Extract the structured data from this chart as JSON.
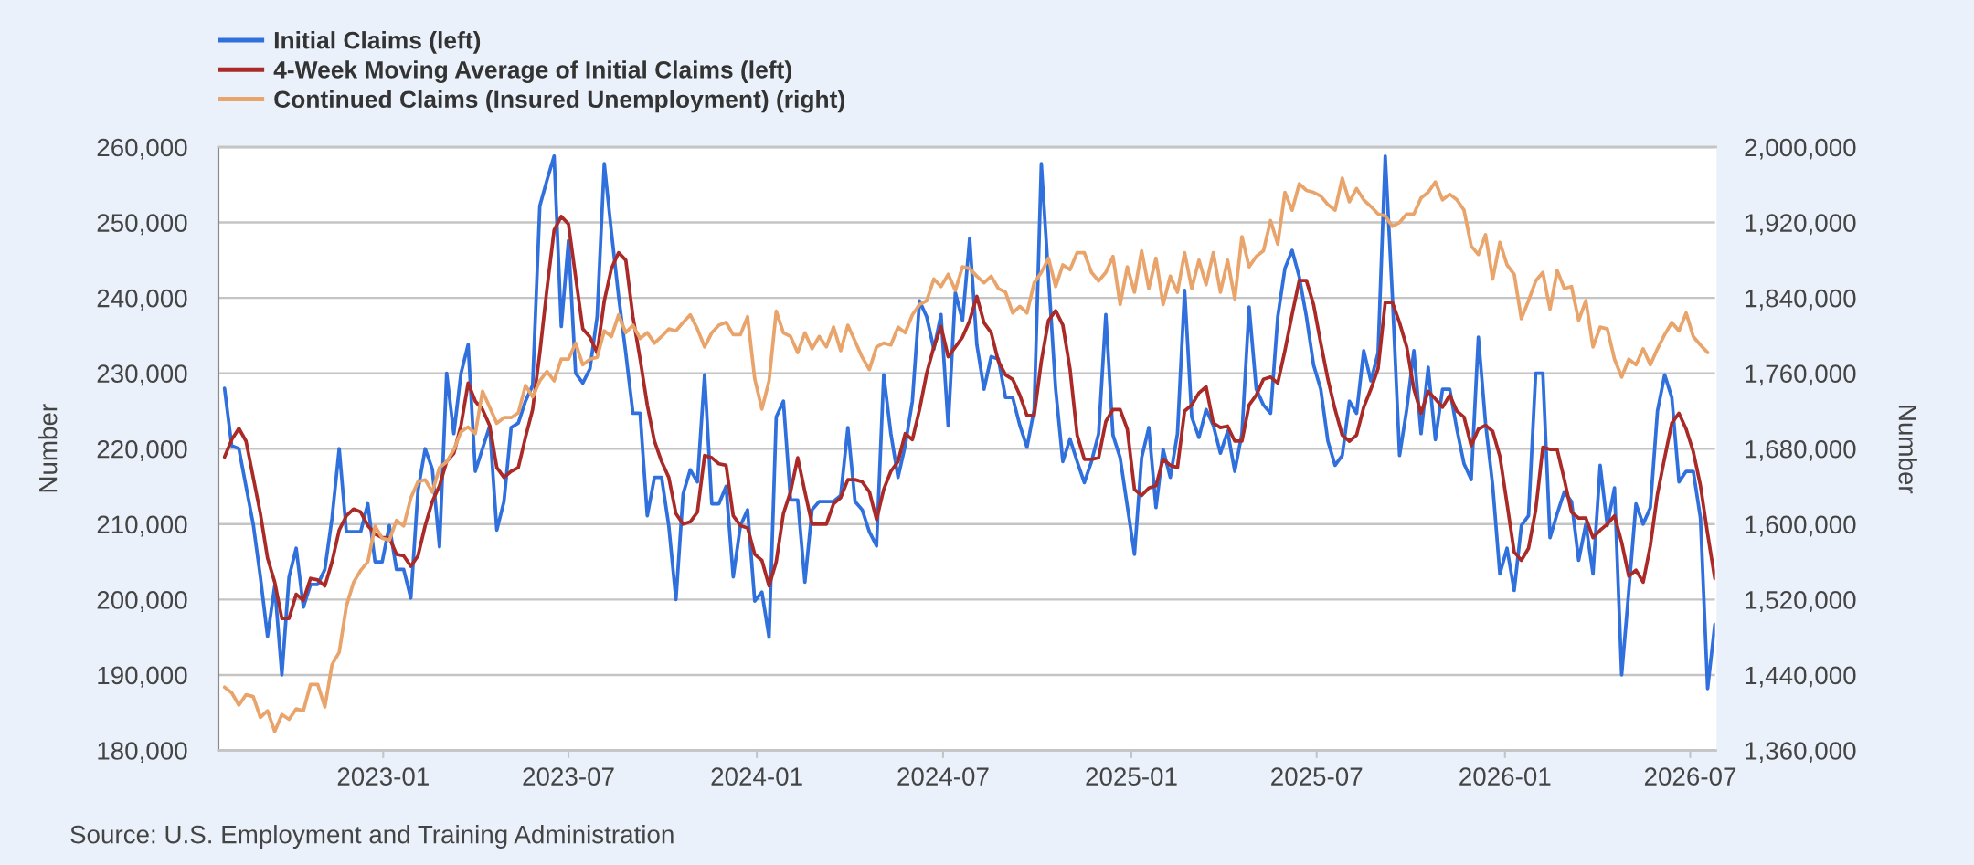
{
  "chart_data": {
    "type": "line",
    "x": [
      "2022-07-30",
      "2022-08-06",
      "2022-08-13",
      "2022-08-20",
      "2022-08-27",
      "2022-09-03",
      "2022-09-10",
      "2022-09-17",
      "2022-09-24",
      "2022-10-01",
      "2022-10-08",
      "2022-10-15",
      "2022-10-22",
      "2022-10-29",
      "2022-11-05",
      "2022-11-12",
      "2022-11-19",
      "2022-11-26",
      "2022-12-03",
      "2022-12-10",
      "2022-12-17",
      "2022-12-24",
      "2022-12-31",
      "2023-01-07",
      "2023-01-14",
      "2023-01-21",
      "2023-01-28",
      "2023-02-04",
      "2023-02-11",
      "2023-02-18",
      "2023-02-25",
      "2023-03-04",
      "2023-03-11",
      "2023-03-18",
      "2023-03-25",
      "2023-04-01",
      "2023-04-08",
      "2023-04-15",
      "2023-04-22",
      "2023-04-29",
      "2023-05-06",
      "2023-05-13",
      "2023-05-20",
      "2023-05-27",
      "2023-06-03",
      "2023-06-10",
      "2023-06-17",
      "2023-06-24",
      "2023-07-01",
      "2023-07-08",
      "2023-07-15",
      "2023-07-22",
      "2023-07-29",
      "2023-08-05",
      "2023-08-12",
      "2023-08-19",
      "2023-08-26",
      "2023-09-02",
      "2023-09-09",
      "2023-09-16",
      "2023-09-23",
      "2023-09-30",
      "2023-10-07",
      "2023-10-14",
      "2023-10-21",
      "2023-10-28",
      "2023-11-04",
      "2023-11-11",
      "2023-11-18",
      "2023-11-25",
      "2023-12-02",
      "2023-12-09",
      "2023-12-16",
      "2023-12-23",
      "2023-12-30",
      "2024-01-06",
      "2024-01-13",
      "2024-01-20",
      "2024-01-27",
      "2024-02-03",
      "2024-02-10",
      "2024-02-17",
      "2024-02-24",
      "2024-03-02",
      "2024-03-09",
      "2024-03-16",
      "2024-03-23",
      "2024-03-30",
      "2024-04-06",
      "2024-04-13",
      "2024-04-20",
      "2024-04-27",
      "2024-05-04",
      "2024-05-11",
      "2024-05-18",
      "2024-05-25",
      "2024-06-01",
      "2024-06-08",
      "2024-06-15",
      "2024-06-22",
      "2024-06-29",
      "2024-07-06",
      "2024-07-13",
      "2024-07-20",
      "2024-07-27",
      "2024-08-03",
      "2024-08-10",
      "2024-08-17",
      "2024-08-24",
      "2024-08-31",
      "2024-09-07",
      "2024-09-14",
      "2024-09-21",
      "2024-09-28",
      "2024-10-05",
      "2024-10-12",
      "2024-10-19",
      "2024-10-26",
      "2024-11-02",
      "2024-11-09",
      "2024-11-16",
      "2024-11-23",
      "2024-11-30",
      "2024-12-07",
      "2024-12-14",
      "2024-12-21",
      "2024-12-28",
      "2025-01-04",
      "2025-01-11",
      "2025-01-18",
      "2025-01-25",
      "2025-02-01",
      "2025-02-08",
      "2025-02-15",
      "2025-02-22",
      "2025-03-01",
      "2025-03-08",
      "2025-03-15",
      "2025-03-22",
      "2025-03-29",
      "2025-04-05",
      "2025-04-12",
      "2025-04-19",
      "2025-04-26",
      "2025-05-03",
      "2025-05-10",
      "2025-05-17",
      "2025-05-24",
      "2025-05-31",
      "2025-06-07",
      "2025-06-14",
      "2025-06-21",
      "2025-06-28",
      "2025-07-05",
      "2025-07-12",
      "2025-07-19",
      "2025-07-26",
      "2025-08-02",
      "2025-08-09",
      "2025-08-16",
      "2025-08-23",
      "2025-08-30",
      "2025-09-06",
      "2025-09-13",
      "2025-09-20",
      "2025-09-27",
      "2025-10-04",
      "2025-10-11",
      "2025-10-18",
      "2025-10-25",
      "2025-11-01",
      "2025-11-08",
      "2025-11-15",
      "2025-11-22",
      "2025-11-29",
      "2025-12-06",
      "2025-12-13",
      "2025-12-20",
      "2025-12-27",
      "2026-01-03",
      "2026-01-10",
      "2026-01-17",
      "2026-01-24",
      "2026-01-31",
      "2026-02-07",
      "2026-02-14",
      "2026-02-21",
      "2026-02-28",
      "2026-03-07",
      "2026-03-14",
      "2026-03-21",
      "2026-03-28",
      "2026-04-04",
      "2026-04-11",
      "2026-04-18",
      "2026-04-25",
      "2026-05-02",
      "2026-05-09",
      "2026-05-16",
      "2026-05-23",
      "2026-05-30",
      "2026-06-06",
      "2026-06-13",
      "2026-06-20",
      "2026-06-27",
      "2026-07-04",
      "2026-07-11",
      "2026-07-18",
      "2026-07-25"
    ],
    "series": [
      {
        "name": "Initial Claims (left)",
        "color": "#2f70dd",
        "values": [
          228000,
          220400,
          220000,
          215000,
          210000,
          203000,
          195100,
          201800,
          190000,
          203000,
          206800,
          199000,
          202000,
          202000,
          204000,
          210800,
          220000,
          209000,
          209000,
          209000,
          212700,
          205000,
          205000,
          209800,
          204000,
          204000,
          200200,
          214500,
          220000,
          217300,
          207000,
          230000,
          222000,
          230000,
          233800,
          217000,
          220000,
          223000,
          209200,
          213000,
          222800,
          223400,
          226300,
          228400,
          252200,
          255600,
          258800,
          236200,
          247600,
          230000,
          228700,
          230600,
          237500,
          257800,
          248700,
          240200,
          232700,
          224700,
          224700,
          211100,
          216200,
          216200,
          209800,
          200000,
          214000,
          217200,
          215600,
          229800,
          212700,
          212700,
          215000,
          203000,
          209800,
          211900,
          199800,
          201000,
          195000,
          224200,
          226300,
          213200,
          213200,
          202300,
          211900,
          213000,
          213000,
          213000,
          213800,
          222800,
          213000,
          211900,
          209000,
          207100,
          229800,
          222000,
          216200,
          220400,
          226300,
          239600,
          237500,
          233200,
          237800,
          223000,
          240700,
          237000,
          247900,
          233800,
          227900,
          232200,
          231900,
          226800,
          226800,
          223100,
          220200,
          225200,
          257800,
          242800,
          227900,
          218300,
          221300,
          218300,
          215500,
          218300,
          222000,
          237800,
          221800,
          218800,
          212400,
          206000,
          218800,
          222800,
          212200,
          219900,
          216200,
          222000,
          241000,
          224200,
          221500,
          225200,
          223100,
          219400,
          222300,
          217000,
          222000,
          238800,
          227900,
          225800,
          224700,
          237500,
          243900,
          246300,
          242800,
          237500,
          231100,
          227900,
          221000,
          217800,
          219100,
          226300,
          224700,
          233000,
          229000,
          232700,
          258800,
          240200,
          219100,
          225200,
          233000,
          222000,
          230800,
          221200,
          227900,
          227900,
          222600,
          218000,
          215900,
          234800,
          223400,
          215100,
          203400,
          206800,
          201200,
          209800,
          211100,
          230000,
          230000,
          208200,
          211400,
          214300,
          213000,
          205200,
          210000,
          203400,
          217800,
          209800,
          214800,
          190000,
          201200,
          212700,
          210000,
          212200,
          225000,
          229800,
          226800,
          215600,
          217000,
          217000,
          210800,
          188200,
          196700
        ]
      },
      {
        "name": "4-Week Moving Average of Initial Claims (left)",
        "color": "#a92a27",
        "values": [
          218900,
          221200,
          222700,
          221000,
          216200,
          211400,
          205500,
          202300,
          197500,
          197500,
          200700,
          199900,
          202800,
          202600,
          201800,
          205000,
          209200,
          211100,
          212000,
          211600,
          209800,
          208700,
          208200,
          208200,
          206000,
          205800,
          204400,
          205800,
          209800,
          213000,
          215100,
          218300,
          219400,
          223100,
          228700,
          226300,
          225200,
          223100,
          217500,
          216200,
          217000,
          217500,
          221500,
          225200,
          232700,
          241200,
          249000,
          250800,
          249800,
          242800,
          235900,
          234800,
          232700,
          239600,
          243900,
          246000,
          245000,
          237500,
          231900,
          225800,
          221000,
          218300,
          216200,
          211400,
          210000,
          210300,
          211600,
          219100,
          218800,
          218000,
          217800,
          211100,
          209800,
          209500,
          206000,
          205200,
          201800,
          205000,
          211400,
          214300,
          218800,
          214300,
          210000,
          210000,
          210000,
          212700,
          213500,
          215900,
          215900,
          215600,
          214300,
          210600,
          214600,
          217000,
          218300,
          222000,
          221200,
          225200,
          230000,
          233500,
          236200,
          232200,
          233500,
          234800,
          237000,
          240200,
          236700,
          235400,
          231600,
          229800,
          229200,
          227100,
          224400,
          224400,
          231600,
          237000,
          238300,
          236400,
          230600,
          221800,
          218600,
          218600,
          218800,
          223600,
          225200,
          225200,
          222600,
          214600,
          213800,
          214800,
          215100,
          218600,
          217800,
          217500,
          225000,
          225800,
          227400,
          228200,
          223400,
          222800,
          223000,
          221000,
          221000,
          225800,
          227100,
          229200,
          229500,
          228700,
          233000,
          237800,
          242300,
          242300,
          239100,
          234000,
          229200,
          225200,
          221800,
          221000,
          221800,
          225500,
          227900,
          230600,
          239400,
          239400,
          236700,
          233500,
          227900,
          224700,
          227600,
          226600,
          225500,
          227100,
          225000,
          224200,
          220400,
          222600,
          223100,
          222300,
          219000,
          212700,
          206300,
          205200,
          206800,
          211900,
          220200,
          219900,
          219900,
          215900,
          211600,
          210800,
          210800,
          208200,
          209200,
          210000,
          211100,
          207600,
          203100,
          203900,
          202300,
          207100,
          214000,
          218800,
          223400,
          224700,
          222600,
          219600,
          215100,
          208700,
          202800
        ]
      },
      {
        "name": "Continued Claims (Insured Unemployment) (right)",
        "color": "#e9a46b",
        "axis": "y2",
        "values": [
          1427000,
          1421000,
          1408000,
          1419000,
          1417000,
          1395000,
          1402000,
          1380000,
          1398000,
          1393000,
          1404000,
          1402000,
          1430000,
          1430000,
          1406000,
          1451000,
          1464000,
          1513000,
          1538000,
          1551000,
          1560000,
          1598000,
          1585000,
          1583000,
          1604000,
          1598000,
          1628000,
          1645000,
          1647000,
          1634000,
          1660000,
          1666000,
          1679000,
          1698000,
          1703000,
          1696000,
          1741000,
          1724000,
          1707000,
          1713000,
          1713000,
          1718000,
          1747000,
          1735000,
          1752000,
          1762000,
          1752000,
          1775000,
          1775000,
          1792000,
          1769000,
          1775000,
          1777000,
          1805000,
          1799000,
          1822000,
          1803000,
          1811000,
          1797000,
          1803000,
          1792000,
          1799000,
          1807000,
          1805000,
          1814000,
          1822000,
          1807000,
          1788000,
          1803000,
          1811000,
          1814000,
          1801000,
          1801000,
          1820000,
          1754000,
          1722000,
          1752000,
          1826000,
          1803000,
          1799000,
          1782000,
          1803000,
          1786000,
          1799000,
          1788000,
          1809000,
          1784000,
          1811000,
          1794000,
          1777000,
          1764000,
          1788000,
          1792000,
          1790000,
          1809000,
          1803000,
          1822000,
          1833000,
          1837000,
          1860000,
          1852000,
          1865000,
          1848000,
          1873000,
          1871000,
          1863000,
          1856000,
          1863000,
          1850000,
          1846000,
          1824000,
          1831000,
          1824000,
          1856000,
          1867000,
          1882000,
          1852000,
          1875000,
          1870000,
          1888000,
          1888000,
          1867000,
          1858000,
          1867000,
          1884000,
          1833000,
          1873000,
          1846000,
          1890000,
          1850000,
          1882000,
          1833000,
          1863000,
          1846000,
          1888000,
          1850000,
          1880000,
          1854000,
          1888000,
          1846000,
          1880000,
          1839000,
          1905000,
          1873000,
          1884000,
          1890000,
          1922000,
          1897000,
          1952000,
          1933000,
          1961000,
          1954000,
          1952000,
          1948000,
          1939000,
          1933000,
          1967000,
          1942000,
          1956000,
          1944000,
          1937000,
          1929000,
          1927000,
          1916000,
          1920000,
          1929000,
          1929000,
          1946000,
          1952000,
          1963000,
          1944000,
          1950000,
          1944000,
          1933000,
          1895000,
          1886000,
          1907000,
          1860000,
          1899000,
          1875000,
          1865000,
          1818000,
          1837000,
          1858000,
          1867000,
          1828000,
          1869000,
          1850000,
          1852000,
          1816000,
          1837000,
          1788000,
          1809000,
          1807000,
          1775000,
          1756000,
          1775000,
          1769000,
          1786000,
          1769000,
          1786000,
          1801000,
          1814000,
          1805000,
          1824000,
          1799000,
          1790000,
          1782000,
          null
        ]
      }
    ],
    "xlim": [
      "2022-07-24",
      "2026-07-26"
    ],
    "xticks": [
      "2023-01",
      "2023-07",
      "2024-01",
      "2024-07",
      "2025-01",
      "2025-07",
      "2026-01",
      "2026-07"
    ],
    "ylim": [
      180000,
      260000
    ],
    "yticks": [
      {
        "value": 180000,
        "label": "180,000"
      },
      {
        "value": 190000,
        "label": "190,000"
      },
      {
        "value": 200000,
        "label": "200,000"
      },
      {
        "value": 210000,
        "label": "210,000"
      },
      {
        "value": 220000,
        "label": "220,000"
      },
      {
        "value": 230000,
        "label": "230,000"
      },
      {
        "value": 240000,
        "label": "240,000"
      },
      {
        "value": 250000,
        "label": "250,000"
      },
      {
        "value": 260000,
        "label": "260,000"
      }
    ],
    "y2lim": [
      1360000,
      2000000
    ],
    "y2ticks": [
      {
        "value": 1360000,
        "label": "1,360,000"
      },
      {
        "value": 1440000,
        "label": "1,440,000"
      },
      {
        "value": 1520000,
        "label": "1,520,000"
      },
      {
        "value": 1600000,
        "label": "1,600,000"
      },
      {
        "value": 1680000,
        "label": "1,680,000"
      },
      {
        "value": 1760000,
        "label": "1,760,000"
      },
      {
        "value": 1840000,
        "label": "1,840,000"
      },
      {
        "value": 1920000,
        "label": "1,920,000"
      },
      {
        "value": 2000000,
        "label": "2,000,000"
      }
    ],
    "ylabel": "Number",
    "y2label": "Number",
    "grid": "y",
    "legend": "top left",
    "annotations": [
      "Source: U.S. Employment and Training Administration"
    ]
  }
}
